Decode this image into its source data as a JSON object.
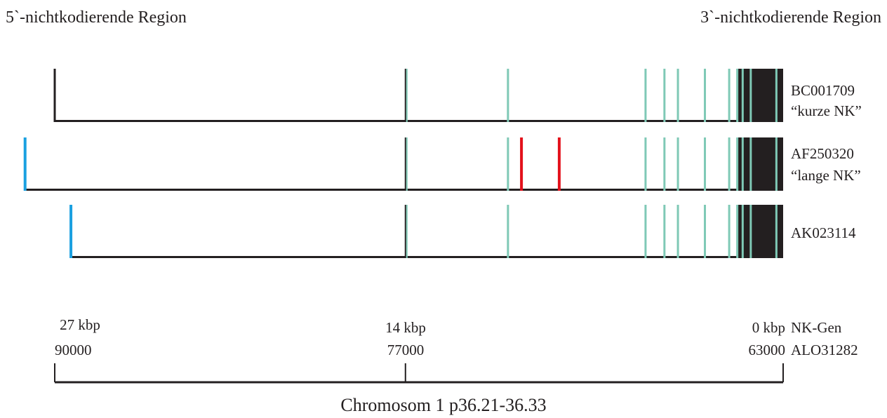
{
  "regions": {
    "left": "5`-nichtkodierende Region",
    "right": "3`-nichtkodierende Region"
  },
  "transcripts": [
    {
      "id": "BC001709",
      "label_line1": "BC001709",
      "label_line2": "“kurze NK”",
      "start_kbp": 27,
      "start_marker_color": "#231f20",
      "red_exons_kbp": []
    },
    {
      "id": "AF250320",
      "label_line1": "AF250320",
      "label_line2": "“lange NK”",
      "start_kbp": 28.1,
      "start_marker_color": "#1aa0e0",
      "red_exons_kbp": [
        9.7,
        8.3
      ]
    },
    {
      "id": "AK023114",
      "label_line1": "AK023114",
      "label_line2": "",
      "start_kbp": 26.4,
      "start_marker_color": "#1aa0e0",
      "red_exons_kbp": []
    }
  ],
  "shared_exons_kbp": [
    10.2,
    5.1,
    4.4,
    3.9,
    2.9,
    2.0,
    1.7,
    1.5,
    1.2,
    0.25
  ],
  "exon_14kbp_color": "#231f20",
  "colors": {
    "exon": "#7fc9b6",
    "red_exon": "#e3111b",
    "blue_start": "#1aa0e0",
    "line": "#231f20",
    "coding_block": "#231f20"
  },
  "axis": {
    "kbp_ticks": [
      "27 kbp",
      "14 kbp",
      "0 kbp"
    ],
    "coord_ticks": [
      "90000",
      "77000",
      "63000"
    ],
    "nk_gen_label": "NK-Gen",
    "clone_label": "ALO31282",
    "caption": "Chromosom 1 p36.21-36.33",
    "kbp_values": [
      27,
      14,
      0
    ]
  }
}
